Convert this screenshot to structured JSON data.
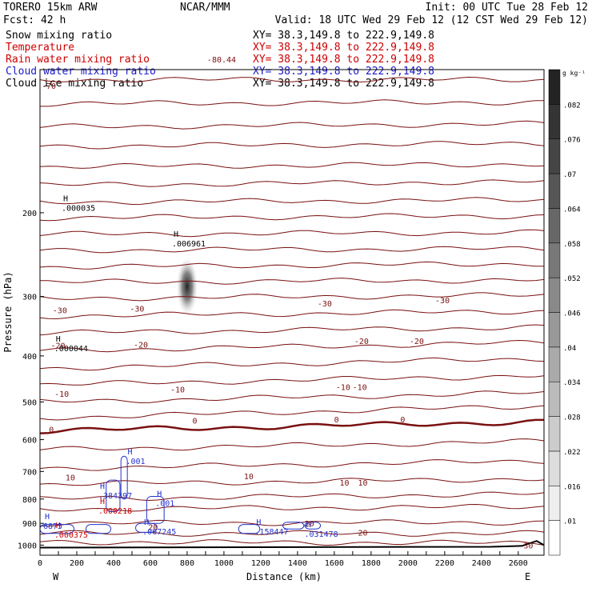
{
  "header": {
    "model": "TORERO  15km ARW",
    "center": "NCAR/MMM",
    "init": "Init: 00 UTC Tue 28 Feb 12",
    "fcst": "Fcst:   42 h",
    "valid": "Valid: 18 UTC Wed 29 Feb 12 (12 CST Wed 29 Feb 12)"
  },
  "fields": [
    {
      "name": "Snow mixing ratio",
      "xs": "XY=  38.3,149.8 to 222.9,149.8",
      "color": "#000000"
    },
    {
      "name": "Temperature",
      "xs": "XY=  38.3,149.8 to 222.9,149.8",
      "color": "#cc0000"
    },
    {
      "name": "Rain water mixing ratio",
      "xs": "XY=  38.3,149.8 to 222.9,149.8",
      "color": "#cc0000"
    },
    {
      "name": "Cloud water mixing ratio",
      "xs": "XY=  38.3,149.8 to 222.9,149.8",
      "color": "#1a1acc"
    },
    {
      "name": "Cloud ice mixing ratio",
      "xs": "XY=  38.3,149.8 to 222.9,149.8",
      "color": "#000000"
    }
  ],
  "colors": {
    "temperature": "#7a1010",
    "freezing": "#7a1010",
    "cloud_water": "#2233cc",
    "rain": "#cc0000",
    "snow": "#000000",
    "terrain": "#000000"
  },
  "chart_data": {
    "type": "cross-section",
    "xlabel": "Distance (km)",
    "ylabel": "Pressure (hPa)",
    "xlim": [
      0,
      2740
    ],
    "ylim": [
      1050,
      100
    ],
    "y_log_scale": true,
    "xticks": [
      0,
      100,
      200,
      300,
      400,
      500,
      600,
      700,
      800,
      900,
      1000,
      1100,
      1200,
      1300,
      1400,
      1500,
      1600,
      1700,
      1800,
      1900,
      2000,
      2100,
      2200,
      2300,
      2400,
      2500,
      2600
    ],
    "xtick_labels": [
      "0",
      "200",
      "400",
      "600",
      "800",
      "1000",
      "1200",
      "1400",
      "1600",
      "1800",
      "2000",
      "2200",
      "2400",
      "2600"
    ],
    "yticks": [
      200,
      300,
      400,
      500,
      600,
      700,
      800,
      900,
      1000
    ],
    "end_labels": {
      "left": "W",
      "right": "E"
    },
    "temperature_labels": [
      {
        "x": 0,
        "p": 108,
        "text": "-70"
      },
      {
        "x": 900,
        "p": 95,
        "text": "-80.44"
      },
      {
        "x": 60,
        "p": 320,
        "text": "-30"
      },
      {
        "x": 480,
        "p": 318,
        "text": "-30"
      },
      {
        "x": 1500,
        "p": 310,
        "text": "-30"
      },
      {
        "x": 2140,
        "p": 305,
        "text": "-30"
      },
      {
        "x": 50,
        "p": 380,
        "text": "-20"
      },
      {
        "x": 500,
        "p": 378,
        "text": "-20"
      },
      {
        "x": 1700,
        "p": 372,
        "text": "-20"
      },
      {
        "x": 2000,
        "p": 372,
        "text": "-20"
      },
      {
        "x": 70,
        "p": 480,
        "text": "-10"
      },
      {
        "x": 700,
        "p": 470,
        "text": "-10"
      },
      {
        "x": 1600,
        "p": 465,
        "text": "-10"
      },
      {
        "x": 1690,
        "p": 465,
        "text": "-10"
      },
      {
        "x": 40,
        "p": 570,
        "text": "0"
      },
      {
        "x": 820,
        "p": 547,
        "text": "0"
      },
      {
        "x": 1590,
        "p": 543,
        "text": "0"
      },
      {
        "x": 1950,
        "p": 543,
        "text": "0"
      },
      {
        "x": 130,
        "p": 720,
        "text": "10"
      },
      {
        "x": 1100,
        "p": 715,
        "text": "10"
      },
      {
        "x": 1620,
        "p": 738,
        "text": "10"
      },
      {
        "x": 1720,
        "p": 738,
        "text": "10"
      },
      {
        "x": 580,
        "p": 915,
        "text": "20"
      },
      {
        "x": 1430,
        "p": 900,
        "text": "20"
      },
      {
        "x": 1720,
        "p": 940,
        "text": "20"
      },
      {
        "x": 2620,
        "p": 1000,
        "text": "30"
      }
    ],
    "temperature_levels": [
      {
        "p0": 105,
        "p1": 105,
        "bold": false
      },
      {
        "p0": 118,
        "p1": 117,
        "bold": false
      },
      {
        "p0": 132,
        "p1": 130,
        "bold": false
      },
      {
        "p0": 145,
        "p1": 143,
        "bold": false
      },
      {
        "p0": 160,
        "p1": 158,
        "bold": false
      },
      {
        "p0": 175,
        "p1": 172,
        "bold": false
      },
      {
        "p0": 190,
        "p1": 188,
        "bold": false
      },
      {
        "p0": 205,
        "p1": 203,
        "bold": false
      },
      {
        "p0": 222,
        "p1": 220,
        "bold": false
      },
      {
        "p0": 240,
        "p1": 238,
        "bold": false
      },
      {
        "p0": 260,
        "p1": 256,
        "bold": false
      },
      {
        "p0": 280,
        "p1": 277,
        "bold": false
      },
      {
        "p0": 303,
        "p1": 298,
        "bold": false
      },
      {
        "p0": 330,
        "p1": 322,
        "bold": false
      },
      {
        "p0": 358,
        "p1": 348,
        "bold": false
      },
      {
        "p0": 390,
        "p1": 375,
        "bold": false
      },
      {
        "p0": 425,
        "p1": 405,
        "bold": false
      },
      {
        "p0": 460,
        "p1": 440,
        "bold": false
      },
      {
        "p0": 500,
        "p1": 478,
        "bold": false
      },
      {
        "p0": 540,
        "p1": 510,
        "bold": false
      },
      {
        "p0": 575,
        "p1": 550,
        "bold": true
      },
      {
        "p0": 630,
        "p1": 605,
        "bold": false
      },
      {
        "p0": 690,
        "p1": 665,
        "bold": false
      },
      {
        "p0": 745,
        "p1": 725,
        "bold": false
      },
      {
        "p0": 800,
        "p1": 780,
        "bold": false
      },
      {
        "p0": 840,
        "p1": 830,
        "bold": false
      },
      {
        "p0": 900,
        "p1": 895,
        "bold": false
      },
      {
        "p0": 945,
        "p1": 945,
        "bold": false
      },
      {
        "p0": 985,
        "p1": 990,
        "bold": false
      }
    ],
    "max_labels": [
      {
        "x": 100,
        "p": 195,
        "value": ".000035",
        "color": "#000000"
      },
      {
        "x": 700,
        "p": 232,
        "value": ".006961",
        "color": "#000000"
      },
      {
        "x": 60,
        "p": 385,
        "value": ".000044",
        "color": "#000000"
      },
      {
        "x": 450,
        "p": 665,
        "value": ".001",
        "color": "#2233cc"
      },
      {
        "x": 300,
        "p": 785,
        "value": ".384397",
        "color": "#2233cc"
      },
      {
        "x": 610,
        "p": 815,
        "value": ".001",
        "color": "#2233cc"
      },
      {
        "x": 300,
        "p": 845,
        "value": ".000218",
        "color": "#cc0000"
      },
      {
        "x": 540,
        "p": 935,
        "value": ".067245",
        "color": "#2233cc"
      },
      {
        "x": 1150,
        "p": 935,
        "value": ".158447",
        "color": "#2233cc"
      },
      {
        "x": 1420,
        "p": 945,
        "value": ".031478",
        "color": "#2233cc"
      },
      {
        "x": 0,
        "p": 910,
        "value": "6875",
        "color": "#2233cc"
      },
      {
        "x": 60,
        "p": 950,
        "value": ".000375",
        "color": "#cc0000"
      }
    ],
    "colorbar": {
      "unit": "g kg⁻¹",
      "levels": [
        ".01",
        ".016",
        ".022",
        ".028",
        ".034",
        ".04",
        ".046",
        ".052",
        ".058",
        ".064",
        ".07",
        ".076",
        ".082"
      ]
    }
  }
}
